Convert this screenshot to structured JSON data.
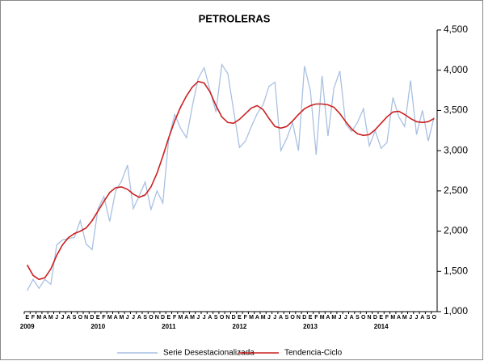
{
  "chart_data": {
    "type": "line",
    "title": "PETROLERAS",
    "categories": [
      "E",
      "F",
      "M",
      "A",
      "M",
      "J",
      "J",
      "A",
      "S",
      "O",
      "N",
      "D",
      "E",
      "F",
      "M",
      "A",
      "M",
      "J",
      "J",
      "A",
      "S",
      "O",
      "N",
      "D",
      "E",
      "F",
      "M",
      "A",
      "M",
      "J",
      "J",
      "A",
      "S",
      "O",
      "N",
      "D",
      "E",
      "F",
      "M",
      "A",
      "M",
      "J",
      "J",
      "A",
      "S",
      "O",
      "N",
      "D",
      "E",
      "F",
      "M",
      "A",
      "M",
      "J",
      "J",
      "A",
      "S",
      "O",
      "N",
      "D",
      "E",
      "F",
      "M",
      "A",
      "M",
      "J",
      "J",
      "A",
      "S",
      "O"
    ],
    "years": [
      "2009",
      "2010",
      "2011",
      "2012",
      "2013",
      "2014"
    ],
    "series": [
      {
        "name": "Serie Desestacionalizada",
        "color": "#a9c0e2",
        "values": [
          1260,
          1400,
          1290,
          1400,
          1340,
          1830,
          1890,
          1910,
          1920,
          2130,
          1840,
          1770,
          2280,
          2430,
          2120,
          2500,
          2620,
          2820,
          2280,
          2440,
          2610,
          2270,
          2500,
          2350,
          3150,
          3450,
          3280,
          3160,
          3550,
          3900,
          4030,
          3750,
          3480,
          4070,
          3960,
          3500,
          3040,
          3120,
          3300,
          3460,
          3570,
          3800,
          3850,
          3000,
          3150,
          3350,
          3000,
          4050,
          3750,
          2950,
          3930,
          3180,
          3780,
          3990,
          3330,
          3240,
          3350,
          3520,
          3060,
          3250,
          3030,
          3100,
          3660,
          3420,
          3300,
          3870,
          3200,
          3500,
          3120,
          3420
        ]
      },
      {
        "name": "Tendencia-Ciclo",
        "color": "#cc2020",
        "values": [
          1580,
          1450,
          1400,
          1420,
          1530,
          1700,
          1830,
          1920,
          1970,
          2000,
          2040,
          2130,
          2250,
          2370,
          2480,
          2540,
          2550,
          2520,
          2460,
          2420,
          2450,
          2550,
          2720,
          2930,
          3160,
          3370,
          3540,
          3680,
          3790,
          3860,
          3840,
          3730,
          3560,
          3420,
          3350,
          3340,
          3390,
          3460,
          3530,
          3560,
          3510,
          3400,
          3300,
          3280,
          3300,
          3370,
          3450,
          3520,
          3560,
          3580,
          3580,
          3570,
          3540,
          3460,
          3360,
          3270,
          3210,
          3190,
          3200,
          3260,
          3340,
          3420,
          3480,
          3490,
          3450,
          3400,
          3360,
          3350,
          3360,
          3400
        ]
      }
    ],
    "ylim": [
      1000,
      4500
    ],
    "yticks": [
      {
        "value": 1000,
        "label": "1,000"
      },
      {
        "value": 1500,
        "label": "1,500"
      },
      {
        "value": 2000,
        "label": "2,000"
      },
      {
        "value": 2500,
        "label": "2,500"
      },
      {
        "value": 3000,
        "label": "3,000"
      },
      {
        "value": 3500,
        "label": "3,500"
      },
      {
        "value": 4000,
        "label": "4,000"
      },
      {
        "value": 4500,
        "label": "4,500"
      }
    ],
    "y_axis_side": "right",
    "grid": false
  }
}
